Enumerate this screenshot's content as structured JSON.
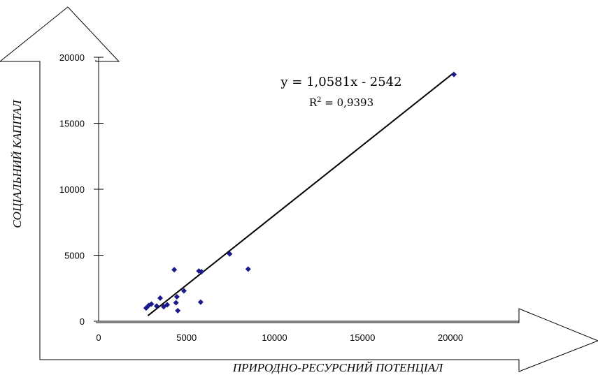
{
  "chart_data": {
    "type": "scatter",
    "xlabel": "ПРИРОДНО-РЕСУРСНИЙ ПОТЕНЦІАЛ",
    "ylabel": "СОЦІАЛЬНИЙ КАПІТАЛ",
    "xlim": [
      0,
      24000
    ],
    "ylim": [
      0,
      20000
    ],
    "x_ticks": [
      "0",
      "5000",
      "10000",
      "15000",
      "20000"
    ],
    "y_ticks": [
      "0",
      "5000",
      "10000",
      "15000",
      "20000"
    ],
    "x_tick_values": [
      0,
      5000,
      10000,
      15000,
      20000
    ],
    "y_tick_values": [
      0,
      5000,
      10000,
      15000,
      20000
    ],
    "points": [
      {
        "x": 2700,
        "y": 1000
      },
      {
        "x": 2850,
        "y": 1200
      },
      {
        "x": 3000,
        "y": 1300
      },
      {
        "x": 3300,
        "y": 1150
      },
      {
        "x": 3500,
        "y": 1750
      },
      {
        "x": 3700,
        "y": 1100
      },
      {
        "x": 3900,
        "y": 1250
      },
      {
        "x": 4300,
        "y": 3900
      },
      {
        "x": 4400,
        "y": 1400
      },
      {
        "x": 4450,
        "y": 1850
      },
      {
        "x": 4500,
        "y": 800
      },
      {
        "x": 4850,
        "y": 2300
      },
      {
        "x": 5700,
        "y": 3800
      },
      {
        "x": 5800,
        "y": 1450
      },
      {
        "x": 5850,
        "y": 3750
      },
      {
        "x": 7450,
        "y": 5100
      },
      {
        "x": 8500,
        "y": 3950
      },
      {
        "x": 20200,
        "y": 18700
      }
    ],
    "trendline": {
      "slope": 1.0581,
      "intercept": -2542,
      "x_range": [
        2800,
        20200
      ],
      "equation": "y = 1,0581x - 2542",
      "r2_prefix": "R",
      "r2_sup": "2",
      "r2_value": " = 0,9393"
    },
    "colors": {
      "points": "#1a1a8c",
      "line": "#000000"
    }
  }
}
